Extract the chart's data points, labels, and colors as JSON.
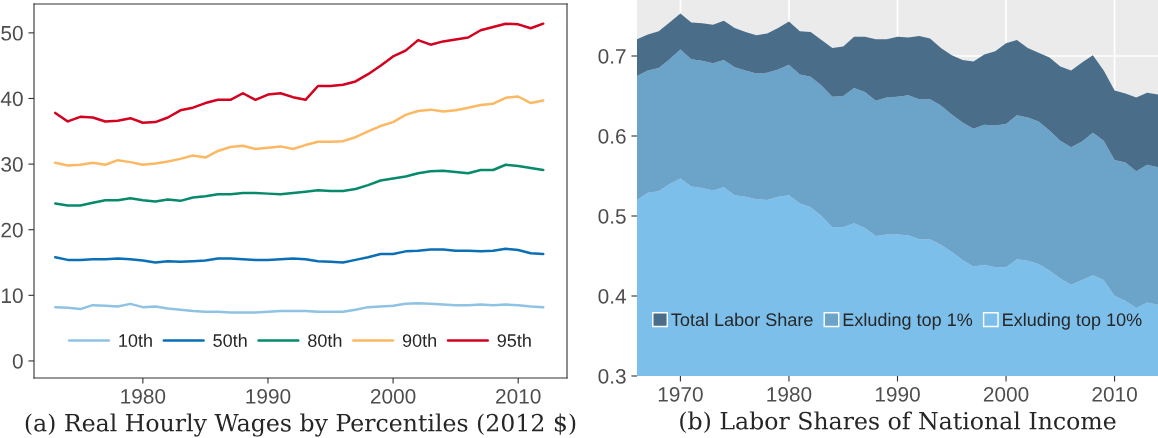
{
  "chart_data": [
    {
      "type": "line",
      "xlabel": "(a) Real Hourly Wages by Percentiles (2012 $)",
      "x": [
        1973,
        1974,
        1975,
        1976,
        1977,
        1978,
        1979,
        1980,
        1981,
        1982,
        1983,
        1984,
        1985,
        1986,
        1987,
        1988,
        1989,
        1990,
        1991,
        1992,
        1993,
        1994,
        1995,
        1996,
        1997,
        1998,
        1999,
        2000,
        2001,
        2002,
        2003,
        2004,
        2005,
        2006,
        2007,
        2008,
        2009,
        2010,
        2011,
        2012
      ],
      "xlim": [
        1971.3,
        2013.9
      ],
      "xticks": [
        1980,
        1990,
        2000,
        2010
      ],
      "ylim": [
        -2.6,
        54.4
      ],
      "yticks": [
        0,
        10,
        20,
        30,
        40,
        50
      ],
      "grid": false,
      "legend": "bottom",
      "series": [
        {
          "name": "10th",
          "color": "#8fc3e4",
          "values": [
            8.2,
            8.1,
            7.9,
            8.5,
            8.4,
            8.3,
            8.7,
            8.2,
            8.3,
            8.0,
            7.8,
            7.6,
            7.5,
            7.5,
            7.4,
            7.4,
            7.4,
            7.5,
            7.6,
            7.6,
            7.6,
            7.5,
            7.5,
            7.5,
            7.8,
            8.2,
            8.3,
            8.4,
            8.7,
            8.8,
            8.7,
            8.6,
            8.5,
            8.5,
            8.6,
            8.5,
            8.6,
            8.5,
            8.3,
            8.2
          ]
        },
        {
          "name": "50th",
          "color": "#0a6fb5",
          "values": [
            15.8,
            15.4,
            15.4,
            15.5,
            15.5,
            15.6,
            15.5,
            15.3,
            15.0,
            15.2,
            15.1,
            15.2,
            15.3,
            15.6,
            15.6,
            15.5,
            15.4,
            15.4,
            15.5,
            15.6,
            15.5,
            15.2,
            15.1,
            15.0,
            15.4,
            15.8,
            16.3,
            16.3,
            16.7,
            16.8,
            17.0,
            17.0,
            16.8,
            16.8,
            16.7,
            16.8,
            17.1,
            16.9,
            16.4,
            16.3
          ]
        },
        {
          "name": "80th",
          "color": "#078a6c",
          "values": [
            24.0,
            23.7,
            23.7,
            24.1,
            24.5,
            24.5,
            24.8,
            24.5,
            24.3,
            24.6,
            24.4,
            24.9,
            25.1,
            25.4,
            25.4,
            25.6,
            25.6,
            25.5,
            25.4,
            25.6,
            25.8,
            26.0,
            25.9,
            25.9,
            26.2,
            26.8,
            27.5,
            27.8,
            28.1,
            28.6,
            28.9,
            29.0,
            28.8,
            28.6,
            29.1,
            29.1,
            29.9,
            29.7,
            29.4,
            29.1
          ]
        },
        {
          "name": "90th",
          "color": "#fdb863",
          "values": [
            30.2,
            29.8,
            29.9,
            30.2,
            29.9,
            30.6,
            30.3,
            29.9,
            30.1,
            30.4,
            30.8,
            31.3,
            31.0,
            32.0,
            32.6,
            32.8,
            32.3,
            32.5,
            32.7,
            32.3,
            32.9,
            33.4,
            33.4,
            33.5,
            34.1,
            35.0,
            35.8,
            36.4,
            37.5,
            38.1,
            38.3,
            38.0,
            38.2,
            38.6,
            39.0,
            39.2,
            40.1,
            40.3,
            39.3,
            39.7
          ]
        },
        {
          "name": "95th",
          "color": "#d3001f",
          "values": [
            37.8,
            36.5,
            37.2,
            37.1,
            36.5,
            36.6,
            37.0,
            36.3,
            36.4,
            37.1,
            38.2,
            38.6,
            39.3,
            39.8,
            39.8,
            40.8,
            39.8,
            40.6,
            40.8,
            40.2,
            39.8,
            41.9,
            41.9,
            42.1,
            42.6,
            43.7,
            45.0,
            46.4,
            47.3,
            48.9,
            48.2,
            48.7,
            49.0,
            49.3,
            50.4,
            50.9,
            51.4,
            51.3,
            50.7,
            51.4
          ]
        }
      ]
    },
    {
      "type": "area",
      "xlabel": "(b) Labor Shares of National Income",
      "x": [
        1966,
        1967,
        1968,
        1969,
        1970,
        1971,
        1972,
        1973,
        1974,
        1975,
        1976,
        1977,
        1978,
        1979,
        1980,
        1981,
        1982,
        1983,
        1984,
        1985,
        1986,
        1987,
        1988,
        1989,
        1990,
        1991,
        1992,
        1993,
        1994,
        1995,
        1996,
        1997,
        1998,
        1999,
        2000,
        2001,
        2002,
        2003,
        2004,
        2005,
        2006,
        2007,
        2008,
        2009,
        2010,
        2011,
        2012,
        2013,
        2014
      ],
      "xlim": [
        1966,
        2014
      ],
      "xticks": [
        1970,
        1980,
        1990,
        2000,
        2010
      ],
      "ylim": [
        0.3,
        0.77
      ],
      "yticks": [
        {
          "value": 0.3,
          "label": "0.3"
        },
        {
          "value": 0.4,
          "label": "0.4"
        },
        {
          "value": 0.5,
          "label": "0.5"
        },
        {
          "value": 0.6,
          "label": "0.6"
        },
        {
          "value": 0.7,
          "label": "0.7"
        }
      ],
      "grid": true,
      "legend": "bottom",
      "series": [
        {
          "name": "Total Labor Share",
          "color": "#4a6e8a",
          "values": [
            0.721,
            0.727,
            0.731,
            0.742,
            0.753,
            0.742,
            0.741,
            0.739,
            0.744,
            0.735,
            0.73,
            0.726,
            0.728,
            0.735,
            0.743,
            0.731,
            0.73,
            0.72,
            0.71,
            0.712,
            0.724,
            0.724,
            0.721,
            0.721,
            0.724,
            0.723,
            0.725,
            0.722,
            0.71,
            0.701,
            0.695,
            0.693,
            0.702,
            0.706,
            0.716,
            0.72,
            0.71,
            0.704,
            0.698,
            0.687,
            0.682,
            0.692,
            0.701,
            0.682,
            0.657,
            0.653,
            0.648,
            0.654,
            0.652
          ]
        },
        {
          "name": "Exluding top 1%",
          "color": "#6ca3c9",
          "values": [
            0.675,
            0.682,
            0.685,
            0.696,
            0.708,
            0.696,
            0.694,
            0.691,
            0.695,
            0.686,
            0.682,
            0.678,
            0.679,
            0.683,
            0.689,
            0.677,
            0.674,
            0.663,
            0.649,
            0.65,
            0.66,
            0.655,
            0.644,
            0.648,
            0.649,
            0.651,
            0.646,
            0.646,
            0.638,
            0.627,
            0.617,
            0.609,
            0.614,
            0.613,
            0.615,
            0.626,
            0.623,
            0.618,
            0.607,
            0.594,
            0.586,
            0.593,
            0.604,
            0.594,
            0.57,
            0.567,
            0.556,
            0.564,
            0.561
          ]
        },
        {
          "name": "Exluding top 10%",
          "color": "#7dbfeb",
          "values": [
            0.52,
            0.529,
            0.531,
            0.54,
            0.547,
            0.537,
            0.535,
            0.532,
            0.536,
            0.526,
            0.524,
            0.521,
            0.52,
            0.524,
            0.526,
            0.516,
            0.511,
            0.5,
            0.486,
            0.486,
            0.491,
            0.485,
            0.475,
            0.477,
            0.477,
            0.476,
            0.471,
            0.471,
            0.464,
            0.455,
            0.445,
            0.437,
            0.439,
            0.436,
            0.436,
            0.446,
            0.444,
            0.44,
            0.432,
            0.422,
            0.414,
            0.42,
            0.426,
            0.42,
            0.4,
            0.394,
            0.385,
            0.392,
            0.389
          ]
        }
      ]
    }
  ]
}
